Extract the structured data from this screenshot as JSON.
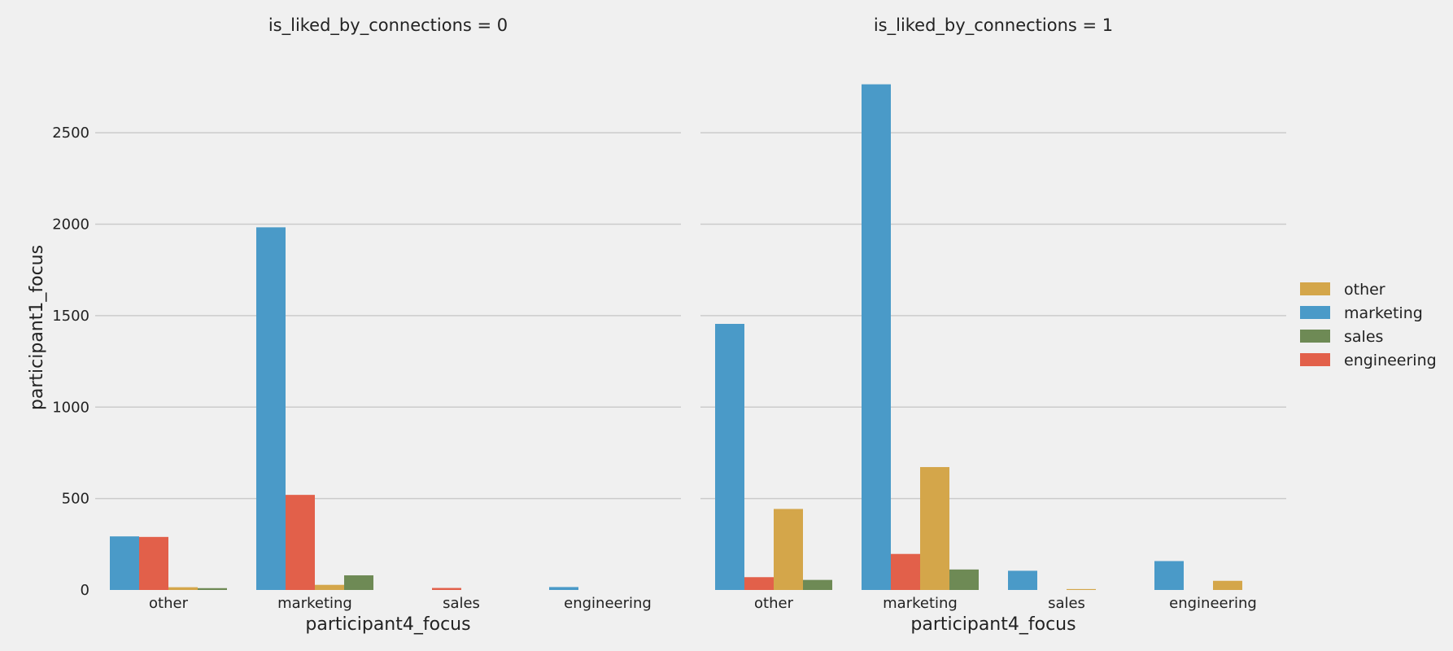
{
  "chart_data": {
    "type": "bar",
    "hue_order": [
      "marketing",
      "engineering",
      "other",
      "sales"
    ],
    "colors": {
      "other": "#d4a64a",
      "marketing": "#4a9ac8",
      "sales": "#6e8a55",
      "engineering": "#e2604a"
    },
    "panels": [
      {
        "title": "is_liked_by_connections = 0",
        "xlabel": "participant4_focus",
        "ylabel": "participant1_focus",
        "categories": [
          "other",
          "marketing",
          "sales",
          "engineering"
        ],
        "series": [
          {
            "name": "marketing",
            "values": [
              293,
              1983,
              0,
              16
            ]
          },
          {
            "name": "engineering",
            "values": [
              290,
              520,
              11,
              0
            ]
          },
          {
            "name": "other",
            "values": [
              15,
              28,
              0,
              0
            ]
          },
          {
            "name": "sales",
            "values": [
              10,
              80,
              0,
              0
            ]
          }
        ]
      },
      {
        "title": "is_liked_by_connections = 1",
        "xlabel": "participant4_focus",
        "ylabel": "",
        "categories": [
          "other",
          "marketing",
          "sales",
          "engineering"
        ],
        "series": [
          {
            "name": "marketing",
            "values": [
              1455,
              2765,
              105,
              158
            ]
          },
          {
            "name": "engineering",
            "values": [
              70,
              197,
              0,
              0
            ]
          },
          {
            "name": "other",
            "values": [
              443,
              672,
              5,
              50
            ]
          },
          {
            "name": "sales",
            "values": [
              55,
              112,
              0,
              0
            ]
          }
        ]
      }
    ],
    "ylim": [
      0,
      2870
    ],
    "yticks": [
      0,
      500,
      1000,
      1500,
      2000,
      2500
    ],
    "grid": true,
    "legend": {
      "placement": "right",
      "entries": [
        "other",
        "marketing",
        "sales",
        "engineering"
      ]
    }
  }
}
